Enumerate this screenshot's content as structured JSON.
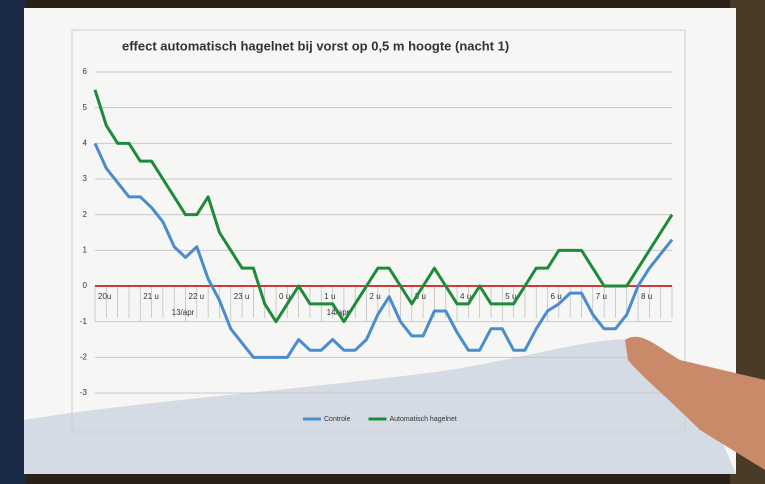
{
  "chart_data": {
    "type": "line",
    "title": "effect automatisch hagelnet bij vorst op 0,5 m hoogte (nacht 1)",
    "categories": [
      "20u",
      null,
      null,
      null,
      "21 u",
      null,
      null,
      null,
      "22 u",
      null,
      null,
      null,
      "23 u",
      null,
      null,
      null,
      "0 u",
      null,
      null,
      null,
      "1 u",
      null,
      null,
      null,
      "2 u",
      null,
      null,
      null,
      "3 u",
      null,
      null,
      null,
      "4 u",
      null,
      null,
      null,
      "5 u",
      null,
      null,
      null,
      "6 u",
      null,
      null,
      null,
      "7 u",
      null,
      null,
      null,
      "8 u",
      null,
      null,
      null
    ],
    "date_labels": [
      "13/apr",
      "14/apr"
    ],
    "series": [
      {
        "name": "Controle",
        "color": "#4a8ccc",
        "values": [
          4.0,
          3.3,
          2.9,
          2.5,
          2.5,
          2.2,
          1.8,
          1.1,
          0.8,
          1.1,
          0.2,
          -0.4,
          -1.2,
          -1.6,
          -2.0,
          -2.0,
          -2.0,
          -2.0,
          -1.5,
          -1.8,
          -1.8,
          -1.5,
          -1.8,
          -1.8,
          -1.5,
          -0.8,
          -0.3,
          -1.0,
          -1.4,
          -1.4,
          -0.7,
          -0.7,
          -1.3,
          -1.8,
          -1.8,
          -1.2,
          -1.2,
          -1.8,
          -1.8,
          -1.2,
          -0.7,
          -0.5,
          -0.2,
          -0.2,
          -0.8,
          -1.2,
          -1.2,
          -0.8,
          0.0,
          0.5,
          0.9,
          1.3
        ]
      },
      {
        "name": "Automatisch hagelnet",
        "color": "#1e8a3a",
        "values": [
          5.5,
          4.5,
          4.0,
          4.0,
          3.5,
          3.5,
          3.0,
          2.5,
          2.0,
          2.0,
          2.5,
          1.5,
          1.0,
          0.5,
          0.5,
          -0.5,
          -1.0,
          -0.5,
          0.0,
          -0.5,
          -0.5,
          -0.5,
          -1.0,
          -0.5,
          0.0,
          0.5,
          0.5,
          0.0,
          -0.5,
          0.0,
          0.5,
          0.0,
          -0.5,
          -0.5,
          0.0,
          -0.5,
          -0.5,
          -0.5,
          0.0,
          0.5,
          0.5,
          1.0,
          1.0,
          1.0,
          0.5,
          0.0,
          0.0,
          0.0,
          0.5,
          1.0,
          1.5,
          2.0
        ]
      }
    ],
    "ylim": [
      -3,
      6
    ],
    "yticks": [
      -3,
      -2,
      -1,
      0,
      1,
      2,
      3,
      4,
      5,
      6
    ],
    "grid": true,
    "zero_line_color": "#d23a3a",
    "legend": "bottom"
  }
}
